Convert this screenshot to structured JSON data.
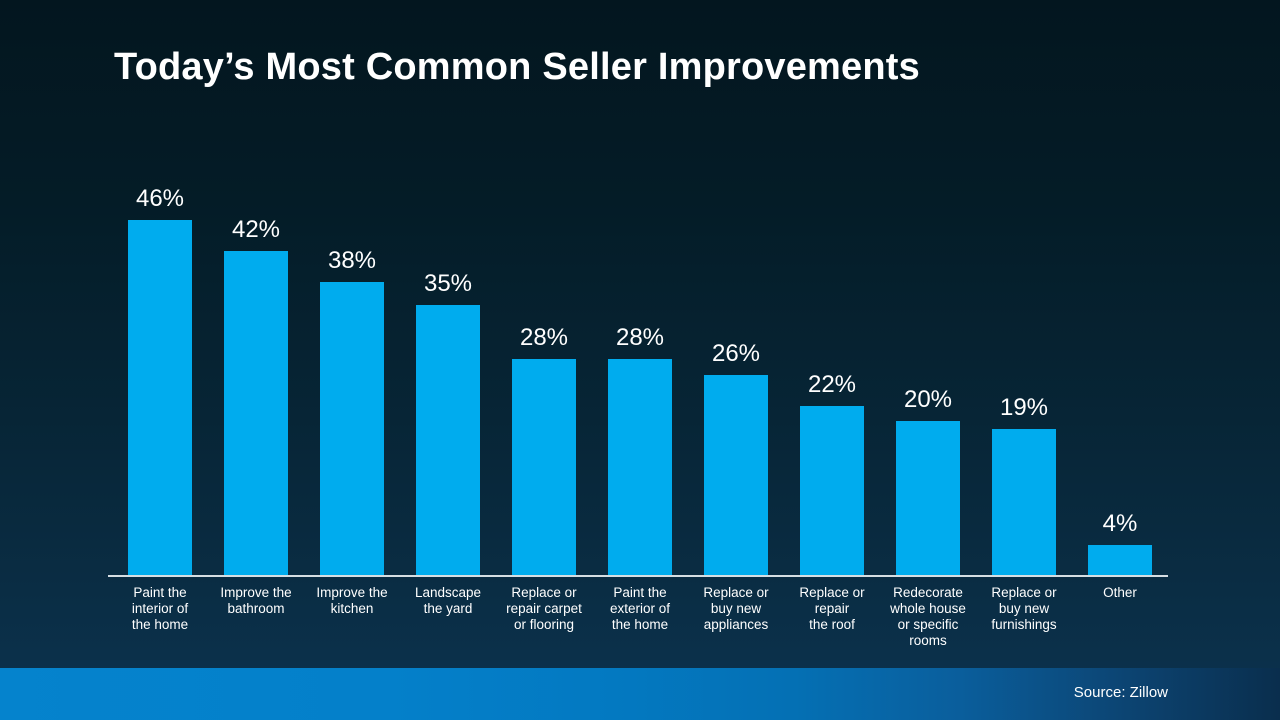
{
  "slide": {
    "title": "Today’s Most Common Seller Improvements",
    "source": "Source: Zillow",
    "background_top": "#03161F",
    "background_bottom": "#0C3350",
    "footer_gradient_left": "#0583CD",
    "footer_gradient_right": "#0A2E4D"
  },
  "chart_data": {
    "type": "bar",
    "title": "Today’s Most Common Seller Improvements",
    "categories": [
      "Paint the interior of the home",
      "Improve the bathroom",
      "Improve the kitchen",
      "Landscape the yard",
      "Replace or repair carpet or flooring",
      "Paint the exterior of the home",
      "Replace or buy new appliances",
      "Replace or repair the roof",
      "Redecorate whole house or specific rooms",
      "Replace or buy new furnishings",
      "Other"
    ],
    "category_lines": [
      [
        "Paint the",
        "interior of",
        "the home"
      ],
      [
        "Improve the",
        "bathroom"
      ],
      [
        "Improve the",
        "kitchen"
      ],
      [
        "Landscape",
        "the yard"
      ],
      [
        "Replace or",
        "repair carpet",
        "or flooring"
      ],
      [
        "Paint the",
        "exterior of",
        "the home"
      ],
      [
        "Replace or",
        "buy new",
        "appliances"
      ],
      [
        "Replace or",
        "repair",
        "the roof"
      ],
      [
        "Redecorate",
        "whole house",
        "or specific",
        "rooms"
      ],
      [
        "Replace or",
        "buy new",
        "furnishings"
      ],
      [
        "Other"
      ]
    ],
    "values": [
      46,
      42,
      38,
      35,
      28,
      28,
      26,
      22,
      20,
      19,
      4
    ],
    "value_labels": [
      "46%",
      "42%",
      "38%",
      "35%",
      "28%",
      "28%",
      "26%",
      "22%",
      "20%",
      "19%",
      "4%"
    ],
    "unit": "%",
    "xlabel": "",
    "ylabel": "",
    "ylim": [
      0,
      50
    ],
    "grid": false,
    "legend": false,
    "bar_color": "#00ACEE",
    "axis_line_color": "#D6DEE3",
    "label_color": "#FFFFFF",
    "source": "Zillow"
  }
}
